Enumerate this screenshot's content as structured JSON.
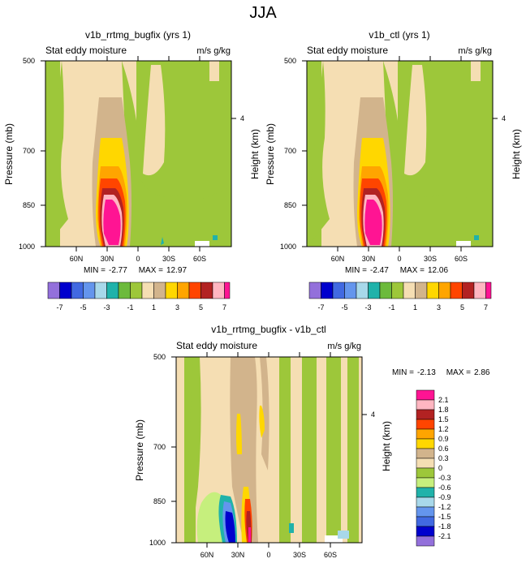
{
  "figure_title": "JJA",
  "chart_data": [
    {
      "type": "contour",
      "title": "v1b_rrtmg_bugfix (yrs 1)",
      "left_string": "Stat eddy moisture",
      "right_string": "m/s g/kg",
      "ylabel": "Pressure (mb)",
      "ylabel_right": "Height (km)",
      "x_ticks": [
        "60N",
        "30N",
        "0",
        "30S",
        "60S"
      ],
      "x_tick_values": [
        60,
        30,
        0,
        -30,
        -60
      ],
      "xlim": [
        90,
        -90
      ],
      "y_ticks": [
        "500",
        "700",
        "850",
        "1000"
      ],
      "y_tick_values": [
        500,
        700,
        850,
        1000
      ],
      "ylim": [
        1000,
        500
      ],
      "right_ticks": [
        "4"
      ],
      "right_tick_values": [
        4
      ],
      "min_label": "MIN =",
      "min_value": "-2.77",
      "max_label": "MAX =",
      "max_value": "12.97",
      "colorbar_labels": [
        "-7",
        "-5",
        "-3",
        "-1",
        "1",
        "3",
        "5",
        "7"
      ]
    },
    {
      "type": "contour",
      "title": "v1b_ctl (yrs 1)",
      "left_string": "Stat eddy moisture",
      "right_string": "m/s g/kg",
      "ylabel": "Pressure (mb)",
      "ylabel_right": "Height (km)",
      "x_ticks": [
        "60N",
        "30N",
        "0",
        "30S",
        "60S"
      ],
      "x_tick_values": [
        60,
        30,
        0,
        -30,
        -60
      ],
      "xlim": [
        90,
        -90
      ],
      "y_ticks": [
        "500",
        "700",
        "850",
        "1000"
      ],
      "y_tick_values": [
        500,
        700,
        850,
        1000
      ],
      "ylim": [
        1000,
        500
      ],
      "right_ticks": [
        "4"
      ],
      "right_tick_values": [
        4
      ],
      "min_label": "MIN =",
      "min_value": "-2.47",
      "max_label": "MAX =",
      "max_value": "12.06",
      "colorbar_labels": [
        "-7",
        "-5",
        "-3",
        "-1",
        "1",
        "3",
        "5",
        "7"
      ]
    },
    {
      "type": "contour",
      "title": "v1b_rrtmg_bugfix - v1b_ctl",
      "left_string": "Stat eddy moisture",
      "right_string": "m/s g/kg",
      "ylabel": "Pressure (mb)",
      "ylabel_right": "Height (km)",
      "x_ticks": [
        "60N",
        "30N",
        "0",
        "30S",
        "60S"
      ],
      "x_tick_values": [
        60,
        30,
        0,
        -30,
        -60
      ],
      "xlim": [
        90,
        -90
      ],
      "y_ticks": [
        "500",
        "700",
        "850",
        "1000"
      ],
      "y_tick_values": [
        500,
        700,
        850,
        1000
      ],
      "ylim": [
        1000,
        500
      ],
      "right_ticks": [
        "4"
      ],
      "right_tick_values": [
        4
      ],
      "min_label": "MIN =",
      "min_value": "-2.13",
      "max_label": "MAX =",
      "max_value": "2.86",
      "colorbar_labels": [
        "2.1",
        "1.8",
        "1.5",
        "1.2",
        "0.9",
        "0.6",
        "0.3",
        "0",
        "-0.3",
        "-0.6",
        "-0.9",
        "-1.2",
        "-1.5",
        "-1.8",
        "-2.1"
      ]
    }
  ],
  "palette": [
    "#9370db",
    "#0000cd",
    "#4169e1",
    "#6495ed",
    "#a8d8ea",
    "#20b2aa",
    "#6cba3c",
    "#9dc73a",
    "#c6ef7d",
    "#f5deb3",
    "#d2b48c",
    "#ffd700",
    "#ffa500",
    "#ff4500",
    "#b22222",
    "#ffb6c1",
    "#ff1493"
  ]
}
